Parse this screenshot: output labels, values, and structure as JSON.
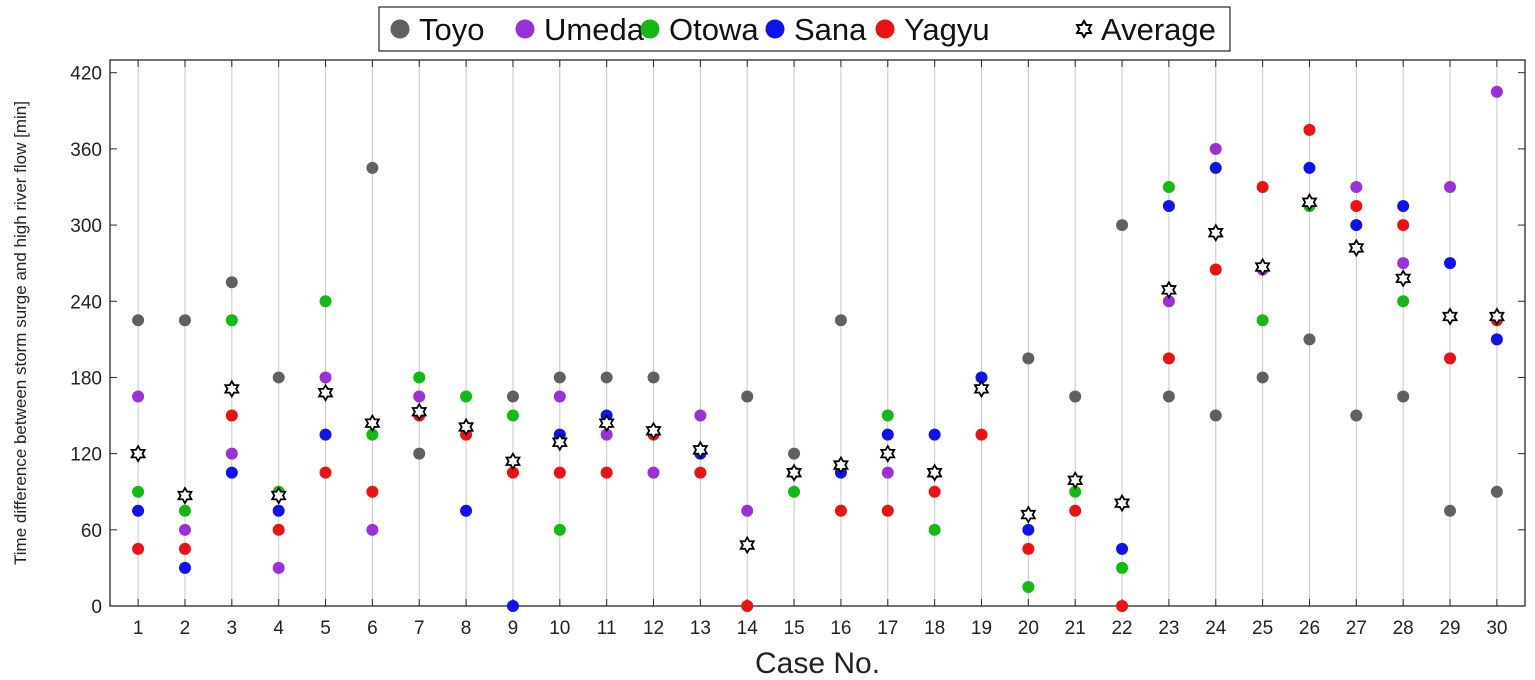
{
  "chart_data": {
    "type": "scatter",
    "title": "",
    "xlabel": "Case No.",
    "ylabel": "Time difference between storm surge and high river flow [min]",
    "xlim": [
      0.4,
      30.6
    ],
    "ylim": [
      0,
      430
    ],
    "yticks": [
      0,
      60,
      120,
      180,
      240,
      300,
      360,
      420
    ],
    "categories": [
      "1",
      "2",
      "3",
      "4",
      "5",
      "6",
      "7",
      "8",
      "9",
      "10",
      "11",
      "12",
      "13",
      "14",
      "15",
      "16",
      "17",
      "18",
      "19",
      "20",
      "21",
      "22",
      "23",
      "24",
      "25",
      "26",
      "27",
      "28",
      "29",
      "30"
    ],
    "grid": "vertical",
    "legend_placement": "top-center",
    "series": [
      {
        "name": "Toyo",
        "color": "#606060",
        "marker": "circle",
        "values": [
          225,
          225,
          255,
          180,
          null,
          345,
          120,
          null,
          165,
          180,
          180,
          180,
          null,
          165,
          120,
          225,
          null,
          null,
          null,
          195,
          165,
          300,
          165,
          150,
          180,
          210,
          150,
          165,
          75,
          90
        ]
      },
      {
        "name": "Umeda",
        "color": "#9b30d9",
        "marker": "circle",
        "values": [
          165,
          60,
          120,
          30,
          180,
          60,
          165,
          null,
          null,
          165,
          135,
          105,
          150,
          75,
          null,
          null,
          105,
          105,
          null,
          null,
          null,
          null,
          240,
          360,
          265,
          null,
          330,
          270,
          330,
          405
        ]
      },
      {
        "name": "Otowa",
        "color": "#11bb11",
        "marker": "circle",
        "values": [
          90,
          75,
          225,
          90,
          240,
          135,
          180,
          165,
          150,
          60,
          null,
          null,
          null,
          null,
          90,
          null,
          150,
          60,
          null,
          15,
          90,
          30,
          330,
          null,
          225,
          315,
          null,
          240,
          null,
          null
        ]
      },
      {
        "name": "Sana",
        "color": "#1111ee",
        "marker": "circle",
        "values": [
          75,
          30,
          105,
          75,
          135,
          null,
          null,
          75,
          0,
          135,
          150,
          null,
          120,
          null,
          null,
          105,
          135,
          135,
          180,
          60,
          null,
          45,
          315,
          345,
          null,
          345,
          300,
          315,
          270,
          210
        ]
      },
      {
        "name": "Yagyu",
        "color": "#ee1111",
        "marker": "circle",
        "values": [
          45,
          45,
          150,
          60,
          105,
          90,
          150,
          135,
          105,
          105,
          105,
          135,
          105,
          0,
          105,
          75,
          75,
          90,
          135,
          45,
          75,
          0,
          195,
          265,
          330,
          375,
          315,
          300,
          195,
          225
        ]
      },
      {
        "name": "Average",
        "color": "#000000",
        "marker": "hexagram",
        "values": [
          120,
          87,
          171,
          87,
          168,
          144,
          153,
          141,
          114,
          129,
          144,
          138,
          123,
          48,
          105,
          111,
          120,
          105,
          171,
          72,
          99,
          81,
          249,
          294,
          267,
          318,
          282,
          258,
          228,
          228
        ]
      }
    ]
  }
}
